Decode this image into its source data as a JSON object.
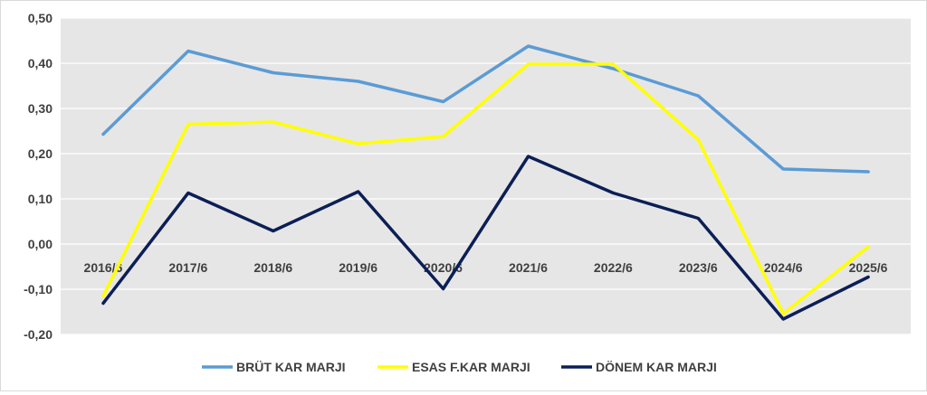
{
  "chart_data": {
    "type": "line",
    "title": "",
    "xlabel": "",
    "ylabel": "",
    "categories": [
      "2016/6",
      "2017/6",
      "2018/6",
      "2019/6",
      "2020/6",
      "2021/6",
      "2022/6",
      "2023/6",
      "2024/6",
      "2025/6"
    ],
    "ylim": [
      -0.2,
      0.5
    ],
    "yticks": [
      "0,50",
      "0,40",
      "0,30",
      "0,20",
      "0,10",
      "0,00",
      "-0,10",
      "-0,20"
    ],
    "grid": true,
    "legend_position": "bottom",
    "series": [
      {
        "name": "BRÜT KAR MARJI",
        "color": "#5b9bd5",
        "values": [
          0.243,
          0.427,
          0.379,
          0.36,
          0.315,
          0.438,
          0.388,
          0.328,
          0.166,
          0.16
        ]
      },
      {
        "name": "ESAS F.KAR MARJI",
        "color": "#ffff00",
        "values": [
          -0.115,
          0.265,
          0.27,
          0.222,
          0.238,
          0.398,
          0.398,
          0.231,
          -0.154,
          -0.006
        ]
      },
      {
        "name": "DÖNEM KAR MARJI",
        "color": "#0b1f56",
        "values": [
          -0.131,
          0.113,
          0.029,
          0.116,
          -0.099,
          0.194,
          0.113,
          0.057,
          -0.166,
          -0.073
        ]
      }
    ]
  }
}
